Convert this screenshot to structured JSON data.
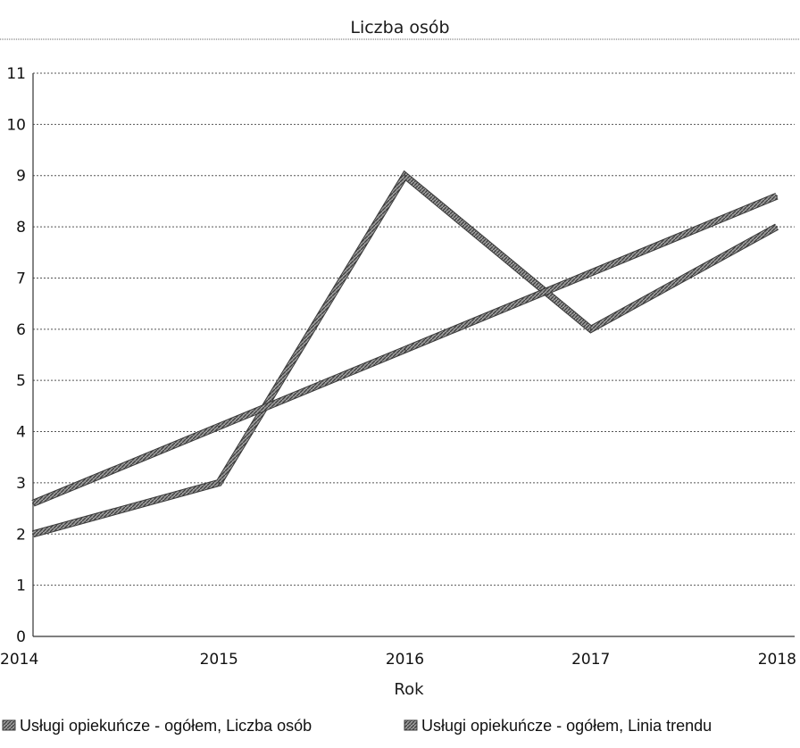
{
  "chart_data": {
    "type": "line",
    "title": "Liczba osób",
    "xlabel": "Rok",
    "ylabel": "",
    "x": [
      2014,
      2015,
      2016,
      2017,
      2018
    ],
    "x_ticks": [
      "2014",
      "2015",
      "2016",
      "2017",
      "2018"
    ],
    "y_ticks": [
      "0",
      "1",
      "2",
      "3",
      "4",
      "5",
      "6",
      "7",
      "8",
      "9",
      "10",
      "11"
    ],
    "ylim": [
      0,
      11
    ],
    "grid": true,
    "legend_position": "bottom",
    "series": [
      {
        "name": "Usługi opiekuńcze - ogółem, Liczba osób",
        "values": [
          2,
          3,
          9,
          6,
          8
        ],
        "color": "#6f6f6f"
      },
      {
        "name": "Usługi opiekuńcze - ogółem, Linia trendu",
        "values": [
          2.6,
          4.1,
          5.6,
          7.1,
          8.6
        ],
        "color": "#6f6f6f"
      }
    ]
  }
}
